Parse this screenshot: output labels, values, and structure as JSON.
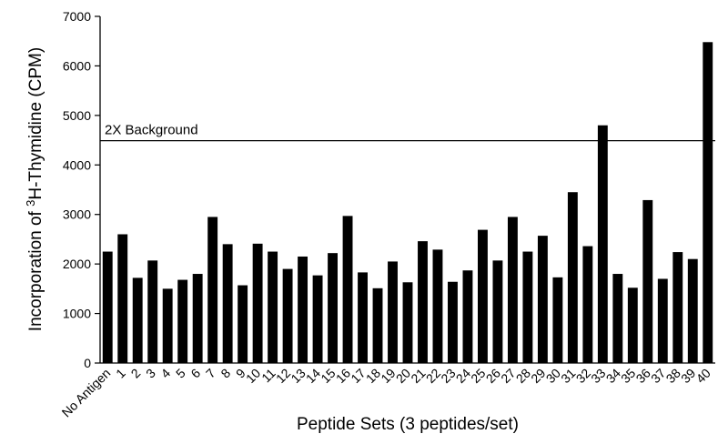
{
  "chart_data": {
    "type": "bar",
    "xlabel": "Peptide Sets (3 peptides/set)",
    "ylabel": {
      "prefix": "Incorporation of ",
      "superscript": "3",
      "suffix": "H-Thymidine (CPM)"
    },
    "ylim": [
      0,
      7000
    ],
    "yticks": [
      0,
      1000,
      2000,
      3000,
      4000,
      5000,
      6000,
      7000
    ],
    "grid": false,
    "bar_color": "#000000",
    "categories": [
      "No Antigen",
      "1",
      "2",
      "3",
      "4",
      "5",
      "6",
      "7",
      "8",
      "9",
      "10",
      "11",
      "12",
      "13",
      "14",
      "15",
      "16",
      "17",
      "18",
      "19",
      "20",
      "21",
      "22",
      "23",
      "24",
      "25",
      "26",
      "27",
      "28",
      "29",
      "30",
      "31",
      "32",
      "33",
      "34",
      "35",
      "36",
      "37",
      "38",
      "39",
      "40"
    ],
    "values": [
      2250,
      2600,
      1720,
      2070,
      1500,
      1680,
      1800,
      2950,
      2400,
      1570,
      2410,
      2250,
      1900,
      2150,
      1770,
      2220,
      2970,
      1830,
      1510,
      2050,
      1630,
      2460,
      2290,
      1640,
      1870,
      2690,
      2070,
      2950,
      2250,
      2570,
      1730,
      3450,
      2360,
      4800,
      1800,
      1520,
      3290,
      1700,
      2240,
      2100,
      6480
    ],
    "reference_line": {
      "value": 4490,
      "label": "2X Background"
    }
  }
}
